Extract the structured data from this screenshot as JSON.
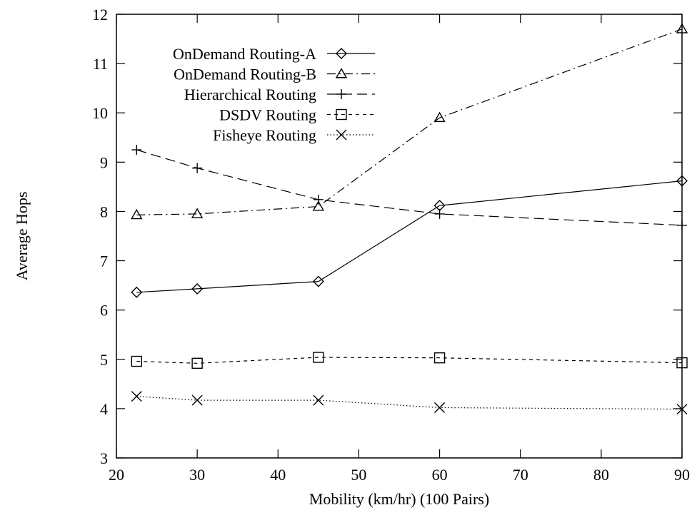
{
  "chart_data": {
    "type": "line",
    "xlabel": "Mobility (km/hr) (100 Pairs)",
    "ylabel": "Average Hops",
    "xlim": [
      20,
      90
    ],
    "ylim": [
      3,
      12
    ],
    "xticks": [
      20,
      30,
      40,
      50,
      60,
      70,
      80,
      90
    ],
    "yticks": [
      3,
      4,
      5,
      6,
      7,
      8,
      9,
      10,
      11,
      12
    ],
    "grid": false,
    "legend_position": "top-left",
    "series": [
      {
        "name": "OnDemand Routing-A",
        "marker": "diamond",
        "dash": "solid",
        "x": [
          22.5,
          30,
          45,
          60,
          90
        ],
        "y": [
          6.36,
          6.43,
          6.58,
          8.12,
          8.62
        ]
      },
      {
        "name": "OnDemand Routing-B",
        "marker": "triangle",
        "dash": "dash-dot",
        "x": [
          22.5,
          30,
          45,
          60,
          90
        ],
        "y": [
          7.93,
          7.95,
          8.1,
          9.9,
          11.7
        ]
      },
      {
        "name": "Hierarchical Routing",
        "marker": "plus",
        "dash": "dashed",
        "x": [
          22.5,
          30,
          45,
          60,
          90
        ],
        "y": [
          9.25,
          8.88,
          8.24,
          7.95,
          7.72
        ]
      },
      {
        "name": "DSDV Routing",
        "marker": "square",
        "dash": "short-dashed",
        "x": [
          22.5,
          30,
          45,
          60,
          90
        ],
        "y": [
          4.96,
          4.92,
          5.04,
          5.03,
          4.93
        ]
      },
      {
        "name": "Fisheye Routing",
        "marker": "cross",
        "dash": "dotted",
        "x": [
          22.5,
          30,
          45,
          60,
          90
        ],
        "y": [
          4.25,
          4.17,
          4.17,
          4.02,
          3.99
        ]
      }
    ]
  }
}
